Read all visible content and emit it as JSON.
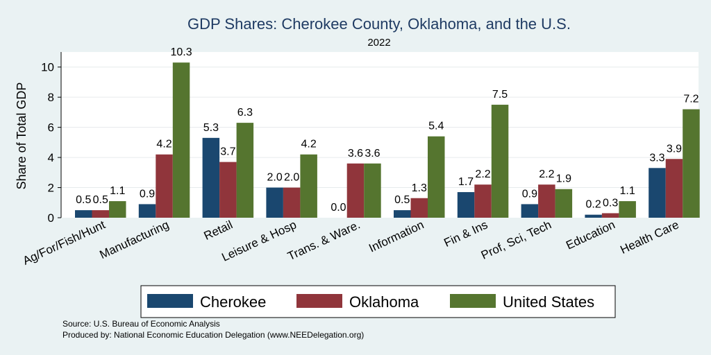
{
  "chart_data": {
    "type": "bar",
    "title": "GDP Shares: Cherokee County, Oklahoma, and the U.S.",
    "subtitle": "2022",
    "ylabel": "Share of Total GDP",
    "xlabel": "",
    "ylim": [
      0,
      11
    ],
    "yticks": [
      0,
      2,
      4,
      6,
      8,
      10
    ],
    "categories": [
      "Ag/For/Fish/Hunt",
      "Manufacturing",
      "Retail",
      "Leisure & Hosp",
      "Trans. & Ware.",
      "Information",
      "Fin & Ins",
      "Prof, Sci, Tech",
      "Education",
      "Health Care"
    ],
    "series": [
      {
        "name": "Cherokee",
        "color": "#1a476f",
        "values": [
          0.5,
          0.9,
          5.3,
          2.0,
          0.0,
          0.5,
          1.7,
          0.9,
          0.2,
          3.3
        ],
        "labels": [
          "0.5",
          "0.9",
          "5.3",
          "2.0",
          "0.0",
          "0.5",
          "1.7",
          "0.9",
          "0.2",
          "3.3"
        ]
      },
      {
        "name": "Oklahoma",
        "color": "#90353b",
        "values": [
          0.5,
          4.2,
          3.7,
          2.0,
          3.6,
          1.3,
          2.2,
          2.2,
          0.3,
          3.9
        ],
        "labels": [
          "0.5",
          "4.2",
          "3.7",
          "2.0",
          "3.6",
          "1.3",
          "2.2",
          "2.2",
          "0.3",
          "3.9"
        ]
      },
      {
        "name": "United States",
        "color": "#55752f",
        "values": [
          1.1,
          10.3,
          6.3,
          4.2,
          3.6,
          5.4,
          7.5,
          1.9,
          1.1,
          7.2
        ],
        "labels": [
          "1.1",
          "10.3",
          "6.3",
          "4.2",
          "3.6",
          "5.4",
          "7.5",
          "1.9",
          "1.1",
          "7.2"
        ]
      }
    ],
    "grid": true,
    "legend_position": "bottom"
  },
  "notes": {
    "source": "Source: U.S. Bureau of Economic Analysis",
    "produced": "Produced by: National Economic Education Delegation (www.NEEDelegation.org)"
  }
}
